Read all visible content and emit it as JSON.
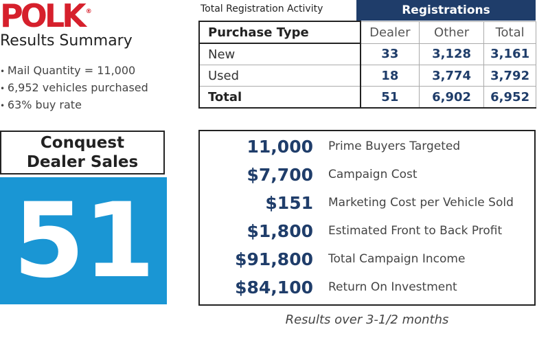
{
  "logo": {
    "text": "POLK",
    "registered_mark": "®"
  },
  "summary": {
    "title": "Results Summary",
    "bullets": [
      "Mail Quantity = 11,000",
      "6,952 vehicles purchased",
      "63% buy rate"
    ]
  },
  "table": {
    "caption": "Total Registration Activity",
    "group_header": "Registrations",
    "columns": [
      "Purchase Type",
      "Dealer",
      "Other",
      "Total"
    ],
    "rows": [
      {
        "label": "New",
        "dealer": "33",
        "other": "3,128",
        "total": "3,161"
      },
      {
        "label": "Used",
        "dealer": "18",
        "other": "3,774",
        "total": "3,792"
      },
      {
        "label": "Total",
        "dealer": "51",
        "other": "6,902",
        "total": "6,952"
      }
    ]
  },
  "conquest": {
    "line1": "Conquest",
    "line2": "Dealer Sales",
    "value": "51"
  },
  "metrics": [
    {
      "value": "11,000",
      "label": "Prime Buyers Targeted"
    },
    {
      "value": "$7,700",
      "label": "Campaign Cost"
    },
    {
      "value": "$151",
      "label": "Marketing Cost per Vehicle Sold"
    },
    {
      "value": "$1,800",
      "label": "Estimated Front to Back Profit"
    },
    {
      "value": "$91,800",
      "label": "Total Campaign Income"
    },
    {
      "value": "$84,100",
      "label": "Return On Investment"
    }
  ],
  "footnote": "Results over 3-1/2 months",
  "colors": {
    "brand_red": "#d6202c",
    "navy": "#1f3d6a",
    "accent_blue": "#1a96d4"
  }
}
